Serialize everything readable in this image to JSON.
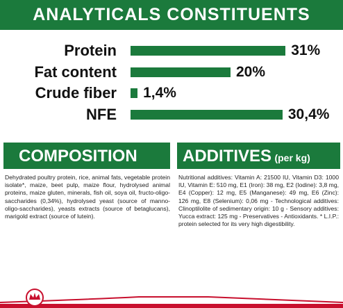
{
  "header": {
    "title": "ANALYTICALS CONSTITUENTS"
  },
  "analytics": {
    "color": "#1b7a3c",
    "rows": [
      {
        "label": "Protein",
        "value": 31,
        "value_label": "31%"
      },
      {
        "label": "Fat content",
        "value": 20,
        "value_label": "20%"
      },
      {
        "label": "Crude fiber",
        "value": 1.4,
        "value_label": "1,4%"
      },
      {
        "label": "NFE",
        "value": 30.4,
        "value_label": "30,4%"
      }
    ]
  },
  "composition": {
    "title": "COMPOSITION",
    "text": "Dehydrated poultry protein, rice, animal fats, vegetable protein isolate*, maize, beet pulp, maize flour, hydrolysed animal proteins, maize gluten, minerals, fish oil, soya oil, fructo-oligo-saccharides (0,34%), hydrolysed yeast (source of manno-oligo-saccharides), yeasts extracts (source of betaglucans), marigold extract (source of lutein)."
  },
  "additives": {
    "title": "ADDITIVES",
    "unit": "(per kg)",
    "text": "Nutritional additives: Vitamin A: 21500 IU, Vitamin D3: 1000 IU, Vitamin E: 510 mg, E1 (Iron): 38 mg, E2 (Iodine): 3,8 mg, E4 (Copper): 12 mg, E5 (Manganese): 49 mg, E6 (Zinc): 126 mg, E8 (Selenium): 0,06 mg - Technological additives: Clinoptilolite of sedimentary origin: 10 g - Sensory additives: Yucca extract: 125 mg - Preservatives - Antioxidants. * L.I.P.: protein selected for its very high digestibility."
  }
}
